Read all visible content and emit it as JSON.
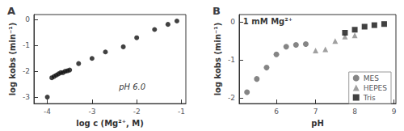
{
  "chart_data": [
    {
      "type": "scatter",
      "title": "A",
      "x": [
        -4.0,
        -3.9,
        -3.85,
        -3.8,
        -3.75,
        -3.7,
        -3.65,
        -3.6,
        -3.55,
        -3.5,
        -3.3,
        -3.0,
        -2.7,
        -2.3,
        -2.0,
        -1.6,
        -1.3,
        -1.1
      ],
      "values": [
        -3.0,
        -2.25,
        -2.2,
        -2.15,
        -2.1,
        -2.05,
        -2.05,
        -2.0,
        -1.98,
        -1.95,
        -1.7,
        -1.5,
        -1.25,
        -1.05,
        -0.7,
        -0.38,
        -0.18,
        -0.05
      ],
      "color": "#111111",
      "marker": "circle",
      "xlabel": "log c (Mg²⁺, M)",
      "ylabel": "log kobs (min⁻¹)",
      "xlim": [
        -4.3,
        -0.9
      ],
      "ylim": [
        -3.25,
        0.2
      ],
      "xticks": [
        -4,
        -3,
        -2,
        -1
      ],
      "yticks": [
        -3,
        -2,
        -1,
        0
      ],
      "grid": false,
      "annotations": [
        {
          "text": "pH 6.0",
          "x": -2.1,
          "y": -2.6
        }
      ]
    },
    {
      "type": "scatter",
      "title": "B",
      "series": [
        {
          "name": "MES",
          "color": "#666666",
          "marker": "circle",
          "x": [
            5.25,
            5.5,
            5.75,
            6.0,
            6.25,
            6.5,
            6.75
          ],
          "values": [
            -1.85,
            -1.5,
            -1.2,
            -0.85,
            -0.65,
            -0.6,
            -0.58
          ]
        },
        {
          "name": "HEPES",
          "color": "#888888",
          "marker": "triangle",
          "x": [
            7.0,
            7.25,
            7.5,
            7.75,
            8.0
          ],
          "values": [
            -0.75,
            -0.72,
            -0.5,
            -0.38,
            -0.35
          ]
        },
        {
          "name": "Tris",
          "color": "#111111",
          "marker": "square",
          "x": [
            7.75,
            8.0,
            8.25,
            8.5,
            8.75
          ],
          "values": [
            -0.28,
            -0.2,
            -0.12,
            -0.08,
            -0.05
          ]
        }
      ],
      "xlabel": "pH",
      "ylabel": "log kobs (min⁻¹)",
      "xlim": [
        5.05,
        9.05
      ],
      "ylim": [
        -2.15,
        0.2
      ],
      "xticks": [
        6,
        7,
        8,
        9
      ],
      "yticks": [
        -2,
        -1,
        0
      ],
      "grid": false,
      "legend": "lower right",
      "annotations": [
        {
          "text": "1 mM Mg²⁺",
          "x": 5.15,
          "y": 0.12
        }
      ]
    }
  ]
}
